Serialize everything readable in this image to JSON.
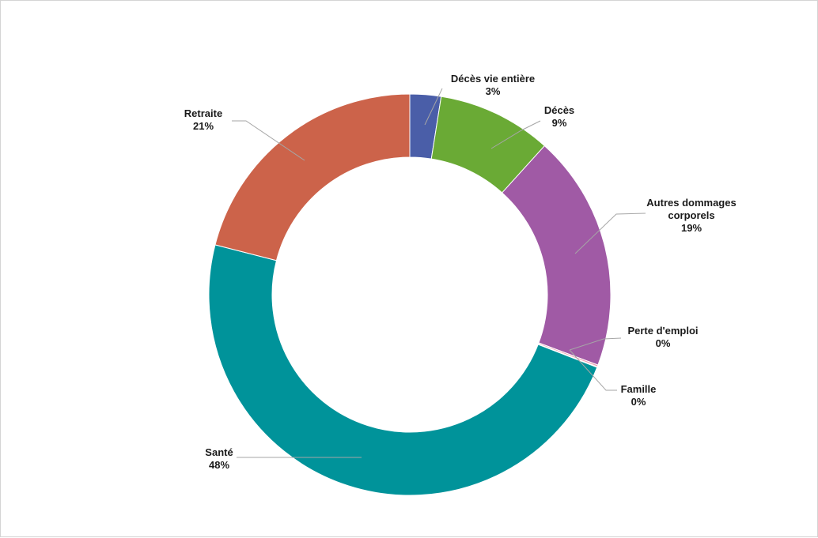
{
  "chart_data": {
    "type": "pie",
    "variant": "donut",
    "start_angle_deg": 0,
    "direction": "clockwise",
    "slices": [
      {
        "lines": [
          "Décès vie entière",
          "3%"
        ],
        "value": 2.5,
        "color": "#4a5ea8"
      },
      {
        "lines": [
          "Décès",
          "9%"
        ],
        "value": 9.2,
        "color": "#6aaa35"
      },
      {
        "lines": [
          "Autres dommages",
          "corporels",
          "19%"
        ],
        "value": 19.0,
        "color": "#a05aa5"
      },
      {
        "lines": [
          "Perte d'emploi",
          "0%"
        ],
        "value": 0.15,
        "color": "#f2a1b3"
      },
      {
        "lines": [
          "Famille",
          "0%"
        ],
        "value": 0.05,
        "color": "#a7b8c9"
      },
      {
        "lines": [
          "Santé",
          "48%"
        ],
        "value": 48.1,
        "color": "#00939a"
      },
      {
        "lines": [
          "Retraite",
          "21%"
        ],
        "value": 21.0,
        "color": "#cc634a"
      }
    ]
  }
}
